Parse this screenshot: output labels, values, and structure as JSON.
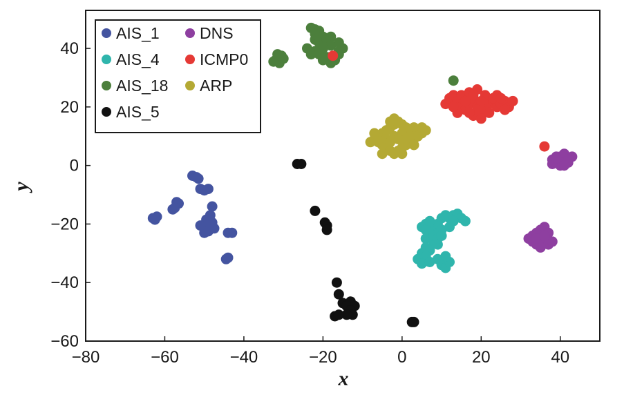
{
  "chart_data": {
    "type": "scatter",
    "xlabel": "x",
    "ylabel": "y",
    "xlim": [
      -80,
      50
    ],
    "ylim": [
      -60,
      53
    ],
    "xticks": [
      -80,
      -60,
      -40,
      -20,
      0,
      20,
      40
    ],
    "yticks": [
      -60,
      -40,
      -20,
      0,
      20,
      40
    ],
    "xtick_labels": [
      "−80",
      "−60",
      "−40",
      "−20",
      "0",
      "20",
      "40"
    ],
    "ytick_labels": [
      "−60",
      "−40",
      "−20",
      "0",
      "20",
      "40"
    ],
    "legend_position": "top-left",
    "series": [
      {
        "name": "AIS_1",
        "color": "#4454a0",
        "points": [
          [
            -63,
            -18
          ],
          [
            -62,
            -17.5
          ],
          [
            -62.5,
            -18.5
          ],
          [
            -57,
            -12.5
          ],
          [
            -56.5,
            -13
          ],
          [
            -57.5,
            -14.5
          ],
          [
            -58,
            -15
          ],
          [
            -53,
            -3.5
          ],
          [
            -52,
            -4
          ],
          [
            -51.5,
            -4.5
          ],
          [
            -51,
            -8
          ],
          [
            -50,
            -8.5
          ],
          [
            -49,
            -8
          ],
          [
            -48,
            -14
          ],
          [
            -48.5,
            -17
          ],
          [
            -49.5,
            -18.5
          ],
          [
            -48,
            -19.5
          ],
          [
            -51,
            -20.5
          ],
          [
            -50,
            -21
          ],
          [
            -50,
            -23
          ],
          [
            -49,
            -22.5
          ],
          [
            -47.5,
            -21.5
          ],
          [
            -44,
            -23
          ],
          [
            -43,
            -23
          ],
          [
            -44,
            -31.5
          ],
          [
            -44.5,
            -32
          ]
        ]
      },
      {
        "name": "AIS_4",
        "color": "#2fb5ac",
        "points": [
          [
            5,
            -21
          ],
          [
            6,
            -20
          ],
          [
            7,
            -21.5
          ],
          [
            8,
            -22
          ],
          [
            9,
            -20
          ],
          [
            10,
            -18
          ],
          [
            11,
            -17
          ],
          [
            12,
            -18
          ],
          [
            13,
            -17
          ],
          [
            14,
            -16.5
          ],
          [
            15,
            -18
          ],
          [
            16,
            -19
          ],
          [
            9,
            -23
          ],
          [
            7,
            -24
          ],
          [
            6,
            -25
          ],
          [
            8,
            -26
          ],
          [
            9,
            -27
          ],
          [
            6,
            -28
          ],
          [
            7,
            -29
          ],
          [
            5,
            -30
          ],
          [
            6,
            -31
          ],
          [
            4,
            -32
          ],
          [
            5,
            -33.5
          ],
          [
            7,
            -33
          ],
          [
            9,
            -32
          ],
          [
            10,
            -34
          ],
          [
            11,
            -35
          ],
          [
            12,
            -33
          ],
          [
            11,
            -31
          ],
          [
            13,
            -19
          ],
          [
            12,
            -21
          ],
          [
            10,
            -22
          ],
          [
            8,
            -24
          ],
          [
            6,
            -22
          ],
          [
            7,
            -19
          ],
          [
            9,
            -25
          ],
          [
            10,
            -24
          ]
        ]
      },
      {
        "name": "AIS_18",
        "color": "#4c7f3c",
        "points": [
          [
            -32,
            36
          ],
          [
            -31,
            35
          ],
          [
            -30,
            36.5
          ],
          [
            -32.5,
            35.5
          ],
          [
            -30.5,
            37.5
          ],
          [
            -31.5,
            38
          ],
          [
            -23,
            47
          ],
          [
            -22,
            46.5
          ],
          [
            -21,
            46
          ],
          [
            -22,
            45
          ],
          [
            -20,
            44
          ],
          [
            -22,
            43
          ],
          [
            -21,
            42
          ],
          [
            -20,
            41
          ],
          [
            -19,
            43
          ],
          [
            -18,
            44
          ],
          [
            -16,
            42
          ],
          [
            -15,
            40
          ],
          [
            -16,
            39
          ],
          [
            -18,
            41
          ],
          [
            -20,
            40
          ],
          [
            -22,
            39
          ],
          [
            -23,
            38
          ],
          [
            -24,
            40
          ],
          [
            -21,
            38
          ],
          [
            -19,
            37
          ],
          [
            -20,
            36
          ],
          [
            -18,
            35
          ],
          [
            -17,
            36
          ],
          [
            -16,
            38
          ],
          [
            -18,
            37
          ],
          [
            13,
            29
          ]
        ]
      },
      {
        "name": "AIS_5",
        "color": "#111111",
        "points": [
          [
            -26.5,
            0.5
          ],
          [
            -25.5,
            0.5
          ],
          [
            -22,
            -15.5
          ],
          [
            -19.5,
            -19.5
          ],
          [
            -19,
            -20.5
          ],
          [
            -19,
            -22
          ],
          [
            -16.5,
            -40
          ],
          [
            -16,
            -44
          ],
          [
            -15,
            -47
          ],
          [
            -14,
            -48
          ],
          [
            -13,
            -46.5
          ],
          [
            -12,
            -48
          ],
          [
            -13,
            -49.5
          ],
          [
            -12.5,
            -51
          ],
          [
            -14,
            -51
          ],
          [
            -17,
            -51.5
          ],
          [
            -16,
            -51
          ],
          [
            2.5,
            -53.5
          ],
          [
            3,
            -53.5
          ]
        ]
      },
      {
        "name": "DNS",
        "color": "#8e3fa0",
        "points": [
          [
            38,
            2
          ],
          [
            39,
            1
          ],
          [
            40,
            3
          ],
          [
            41,
            2
          ],
          [
            42,
            1
          ],
          [
            40,
            0
          ],
          [
            39,
            3
          ],
          [
            41,
            4
          ],
          [
            43,
            3
          ],
          [
            42,
            2
          ],
          [
            40,
            1
          ],
          [
            38,
            0.5
          ],
          [
            41,
            0
          ],
          [
            39,
            2.5
          ],
          [
            32,
            -25
          ],
          [
            33,
            -24
          ],
          [
            34,
            -23
          ],
          [
            35,
            -22
          ],
          [
            36,
            -21
          ],
          [
            37,
            -23
          ],
          [
            35,
            -25
          ],
          [
            33,
            -26
          ],
          [
            34,
            -27
          ],
          [
            36,
            -26
          ],
          [
            37,
            -27
          ],
          [
            35,
            -28
          ],
          [
            34,
            -25
          ],
          [
            38,
            -26
          ],
          [
            36,
            -24
          ]
        ]
      },
      {
        "name": "ICMP0",
        "color": "#e53935",
        "points": [
          [
            11,
            21
          ],
          [
            12,
            23
          ],
          [
            13,
            24
          ],
          [
            14,
            22
          ],
          [
            15,
            20
          ],
          [
            16,
            19
          ],
          [
            17,
            21
          ],
          [
            18,
            22
          ],
          [
            19,
            20
          ],
          [
            20,
            18
          ],
          [
            21,
            19
          ],
          [
            22,
            21
          ],
          [
            23,
            22
          ],
          [
            24,
            20
          ],
          [
            25,
            21
          ],
          [
            26,
            22
          ],
          [
            27,
            20
          ],
          [
            15,
            24
          ],
          [
            17,
            25
          ],
          [
            19,
            26
          ],
          [
            21,
            24
          ],
          [
            23,
            23
          ],
          [
            18,
            17
          ],
          [
            20,
            16
          ],
          [
            22,
            18
          ],
          [
            14,
            18
          ],
          [
            16,
            22
          ],
          [
            24,
            24
          ],
          [
            26,
            19
          ],
          [
            13,
            20
          ],
          [
            18,
            24
          ],
          [
            20,
            22
          ],
          [
            28,
            22
          ],
          [
            19,
            19
          ],
          [
            17,
            18
          ],
          [
            25,
            23
          ],
          [
            -17.5,
            37.5
          ],
          [
            36,
            6.5
          ]
        ]
      },
      {
        "name": "ARP",
        "color": "#b4a934",
        "points": [
          [
            -8,
            8
          ],
          [
            -7,
            9
          ],
          [
            -6,
            10
          ],
          [
            -5,
            11
          ],
          [
            -4,
            12
          ],
          [
            -3,
            13
          ],
          [
            -2,
            14
          ],
          [
            -1,
            15
          ],
          [
            0,
            14
          ],
          [
            1,
            13
          ],
          [
            2,
            12
          ],
          [
            3,
            13
          ],
          [
            4,
            12
          ],
          [
            5,
            11
          ],
          [
            -5,
            7
          ],
          [
            -4,
            6
          ],
          [
            -3,
            5
          ],
          [
            -2,
            4
          ],
          [
            -1,
            5
          ],
          [
            0,
            6
          ],
          [
            1,
            7
          ],
          [
            2,
            8
          ],
          [
            3,
            9
          ],
          [
            -6,
            8
          ],
          [
            -4,
            9
          ],
          [
            -2,
            10
          ],
          [
            0,
            11
          ],
          [
            2,
            10
          ],
          [
            4,
            10
          ],
          [
            -3,
            8
          ],
          [
            -1,
            9
          ],
          [
            1,
            9
          ],
          [
            -3,
            15
          ],
          [
            -2,
            16
          ],
          [
            0,
            4
          ],
          [
            -5,
            4
          ],
          [
            3,
            7
          ],
          [
            5,
            13
          ],
          [
            6,
            12
          ],
          [
            -7,
            11
          ]
        ]
      }
    ]
  }
}
